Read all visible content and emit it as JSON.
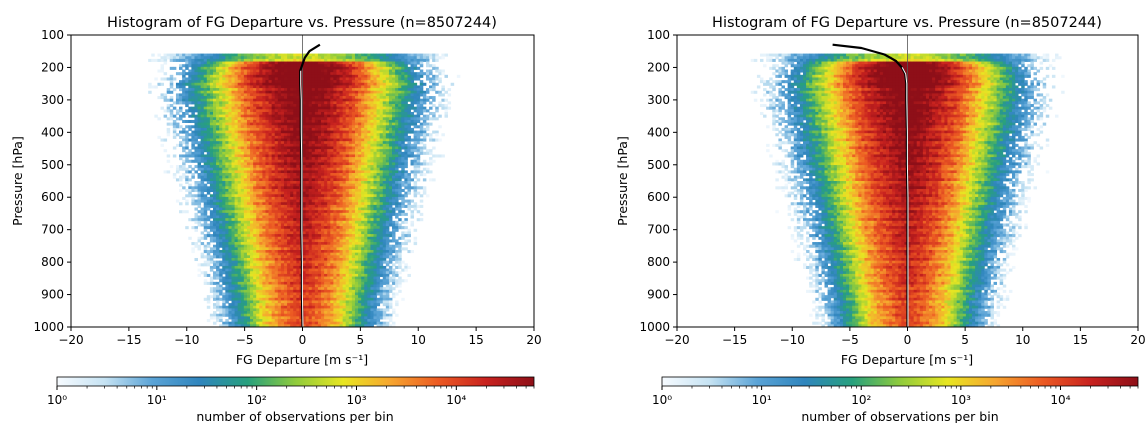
{
  "chart_data": [
    {
      "type": "heatmap",
      "title": "Histogram of FG Departure vs. Pressure (n=8507244)",
      "xlabel": "FG Departure [m s⁻¹]",
      "ylabel": "Pressure [hPa]",
      "xlim": [
        -20,
        20
      ],
      "ylim": [
        1000,
        100
      ],
      "x_ticks": [
        -20,
        -15,
        -10,
        -5,
        0,
        5,
        10,
        15,
        20
      ],
      "y_ticks": [
        100,
        200,
        300,
        400,
        500,
        600,
        700,
        800,
        900,
        1000
      ],
      "colorbar": {
        "label": "number of observations per bin",
        "scale": "log",
        "range": [
          1,
          60000
        ],
        "tick_labels": [
          "10⁰",
          "10¹",
          "10²",
          "10³",
          "10⁴"
        ],
        "tick_values": [
          1,
          10,
          100,
          1000,
          10000
        ],
        "colors": [
          "#f7fbff",
          "#c6e3f3",
          "#5aa3d6",
          "#2f85bd",
          "#27a07d",
          "#8fcb3c",
          "#e8e622",
          "#f6a52f",
          "#ec5a23",
          "#c8221f",
          "#8e0f18"
        ]
      },
      "mean_profile": {
        "pressure": [
          130,
          150,
          170,
          190,
          210,
          250,
          300,
          400,
          500,
          600,
          700,
          800,
          900,
          1000
        ],
        "departure": [
          1.5,
          0.6,
          0.2,
          0.0,
          -0.2,
          -0.2,
          -0.15,
          -0.15,
          -0.1,
          -0.1,
          -0.1,
          -0.05,
          -0.05,
          0.0
        ]
      }
    },
    {
      "type": "heatmap",
      "title": "Histogram of FG Departure vs. Pressure (n=8507244)",
      "xlabel": "FG Departure [m s⁻¹]",
      "ylabel": "Pressure [hPa]",
      "xlim": [
        -20,
        20
      ],
      "ylim": [
        1000,
        100
      ],
      "x_ticks": [
        -20,
        -15,
        -10,
        -5,
        0,
        5,
        10,
        15,
        20
      ],
      "y_ticks": [
        100,
        200,
        300,
        400,
        500,
        600,
        700,
        800,
        900,
        1000
      ],
      "colorbar": {
        "label": "number of observations per bin",
        "scale": "log",
        "range": [
          1,
          60000
        ],
        "tick_labels": [
          "10⁰",
          "10¹",
          "10²",
          "10³",
          "10⁴"
        ],
        "tick_values": [
          1,
          10,
          100,
          1000,
          10000
        ],
        "colors": [
          "#f7fbff",
          "#c6e3f3",
          "#5aa3d6",
          "#2f85bd",
          "#27a07d",
          "#8fcb3c",
          "#e8e622",
          "#f6a52f",
          "#ec5a23",
          "#c8221f",
          "#8e0f18"
        ]
      },
      "mean_profile": {
        "pressure": [
          130,
          140,
          160,
          180,
          200,
          220,
          250,
          300,
          400,
          500,
          600,
          700,
          800,
          900,
          1000
        ],
        "departure": [
          -6.5,
          -4.0,
          -2.0,
          -1.0,
          -0.5,
          -0.2,
          -0.1,
          -0.1,
          -0.05,
          -0.05,
          0.0,
          0.0,
          0.0,
          0.0,
          0.0
        ]
      }
    }
  ]
}
